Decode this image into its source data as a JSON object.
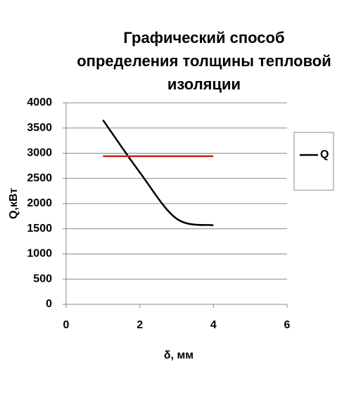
{
  "chart_data": {
    "type": "line",
    "title": [
      "Графический способ",
      "определения толщины тепловой",
      "изоляции"
    ],
    "x_label": "δ, мм",
    "y_label": "Q,кВт",
    "series": [
      {
        "name": "Q",
        "color": "#000000",
        "x": [
          1,
          2,
          3,
          4
        ],
        "values": [
          3660,
          2620,
          1700,
          1570
        ]
      },
      {
        "color": "#cc2222",
        "x": [
          1,
          4
        ],
        "values": [
          2940,
          2940
        ]
      }
    ],
    "xlim": [
      0,
      6
    ],
    "xticks": [
      0,
      2,
      4,
      6
    ],
    "ylim": [
      0,
      4000
    ],
    "yticks": [
      0,
      500,
      1000,
      1500,
      2000,
      2500,
      3000,
      3500,
      4000
    ],
    "grid": true,
    "legend": "right"
  }
}
